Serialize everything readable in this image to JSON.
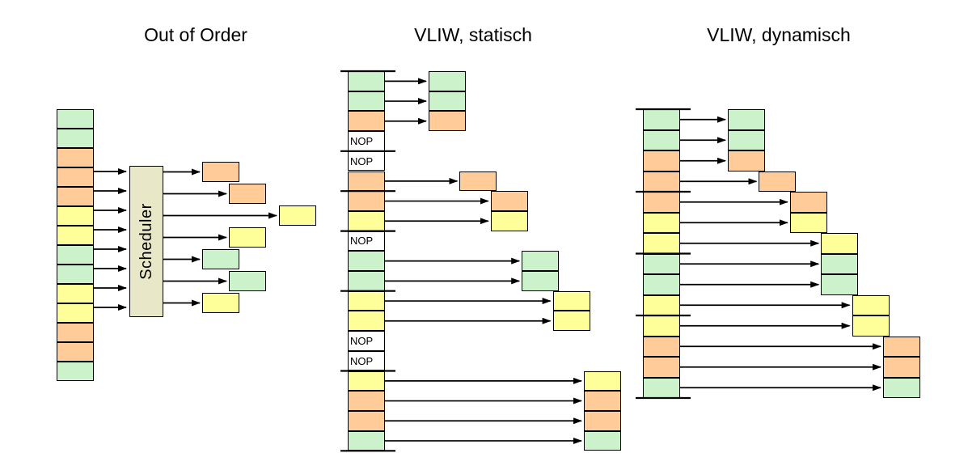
{
  "nop_label": "NOP",
  "colors": {
    "green": "#ccf2cc",
    "orange": "#ffcc99",
    "yellow": "#ffff99",
    "scheduler": "#e8e8c8",
    "line": "#000000"
  },
  "left_panel": {
    "title": "Out of Order",
    "scheduler_label": "Scheduler",
    "input_column": [
      "green",
      "green",
      "orange",
      "orange",
      "orange",
      "yellow",
      "yellow",
      "green",
      "green",
      "yellow",
      "yellow",
      "orange",
      "orange",
      "green"
    ],
    "outputs": [
      {
        "color": "orange",
        "slot": 0
      },
      {
        "color": "orange",
        "slot": 1
      },
      {
        "color": "yellow",
        "slot": 3
      },
      {
        "color": "yellow",
        "slot": 1
      },
      {
        "color": "green",
        "slot": 0
      },
      {
        "color": "green",
        "slot": 1
      },
      {
        "color": "yellow",
        "slot": 0
      }
    ]
  },
  "middle_panel": {
    "title": "VLIW, statisch",
    "rows": [
      {
        "kind": "instr",
        "color": "green",
        "bundle": 0
      },
      {
        "kind": "instr",
        "color": "green",
        "bundle": 0
      },
      {
        "kind": "instr",
        "color": "orange",
        "bundle": 0
      },
      {
        "kind": "nop"
      },
      {
        "kind": "nop"
      },
      {
        "kind": "instr",
        "color": "orange",
        "bundle": 1
      },
      {
        "kind": "instr",
        "color": "orange",
        "bundle": 2
      },
      {
        "kind": "instr",
        "color": "yellow",
        "bundle": 2
      },
      {
        "kind": "nop"
      },
      {
        "kind": "instr",
        "color": "green",
        "bundle": 3
      },
      {
        "kind": "instr",
        "color": "green",
        "bundle": 3
      },
      {
        "kind": "instr",
        "color": "yellow",
        "bundle": 4
      },
      {
        "kind": "instr",
        "color": "yellow",
        "bundle": 4
      },
      {
        "kind": "nop"
      },
      {
        "kind": "nop"
      },
      {
        "kind": "instr",
        "color": "yellow",
        "bundle": 5
      },
      {
        "kind": "instr",
        "color": "orange",
        "bundle": 5
      },
      {
        "kind": "instr",
        "color": "orange",
        "bundle": 5
      },
      {
        "kind": "instr",
        "color": "green",
        "bundle": 5
      }
    ],
    "separators_after": [
      3,
      5,
      7,
      10,
      14
    ]
  },
  "right_panel": {
    "title": "VLIW, dynamisch",
    "rows": [
      {
        "kind": "instr",
        "color": "green",
        "bundle": 0
      },
      {
        "kind": "instr",
        "color": "green",
        "bundle": 0
      },
      {
        "kind": "instr",
        "color": "orange",
        "bundle": 0
      },
      {
        "kind": "instr",
        "color": "orange",
        "bundle": 1
      },
      {
        "kind": "instr",
        "color": "orange",
        "bundle": 2
      },
      {
        "kind": "instr",
        "color": "yellow",
        "bundle": 2
      },
      {
        "kind": "instr",
        "color": "yellow",
        "bundle": 3
      },
      {
        "kind": "instr",
        "color": "green",
        "bundle": 3
      },
      {
        "kind": "instr",
        "color": "green",
        "bundle": 3
      },
      {
        "kind": "instr",
        "color": "yellow",
        "bundle": 4
      },
      {
        "kind": "instr",
        "color": "yellow",
        "bundle": 4
      },
      {
        "kind": "instr",
        "color": "orange",
        "bundle": 5
      },
      {
        "kind": "instr",
        "color": "orange",
        "bundle": 5
      },
      {
        "kind": "instr",
        "color": "green",
        "bundle": 5
      }
    ],
    "separators_after": [
      3,
      6,
      9
    ]
  }
}
